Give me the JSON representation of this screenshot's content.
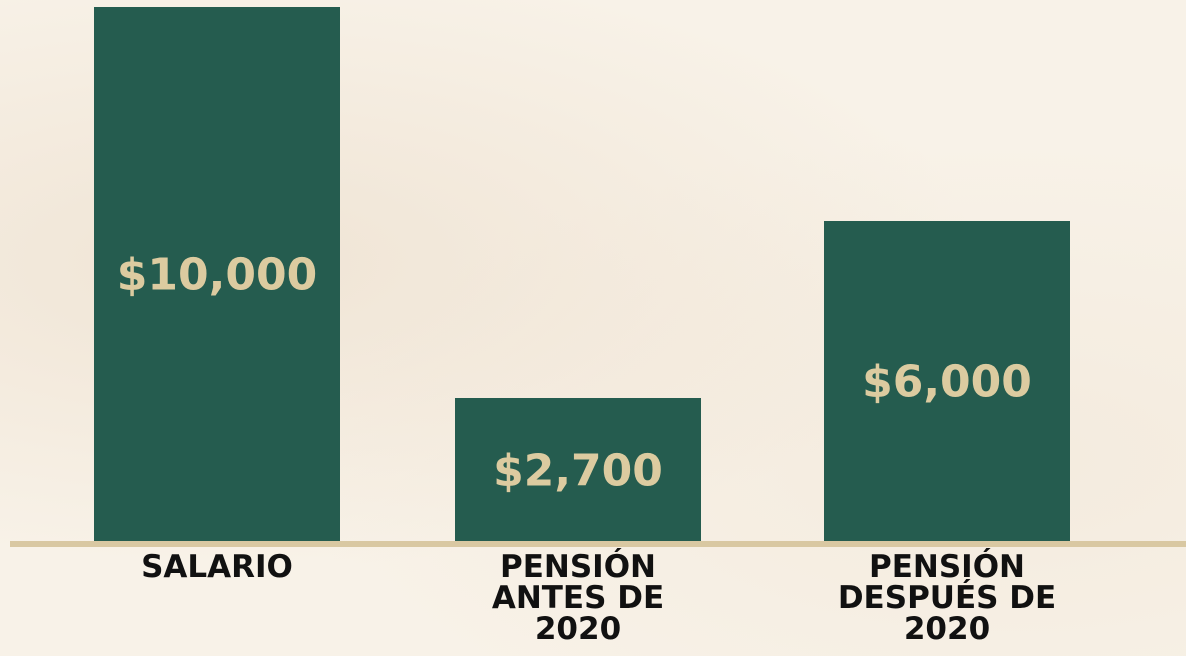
{
  "chart_data": {
    "type": "bar",
    "categories": [
      "SALARIO",
      "PENSIÓN ANTES DE 2020",
      "PENSIÓN DESPUÉS DE 2020"
    ],
    "values": [
      10000,
      2700,
      6000
    ],
    "value_labels": [
      "$10,000",
      "$2,700",
      "$6,000"
    ],
    "color": "#255c4f",
    "label_color": "#dccba0",
    "ylim": [
      0,
      10000
    ]
  }
}
